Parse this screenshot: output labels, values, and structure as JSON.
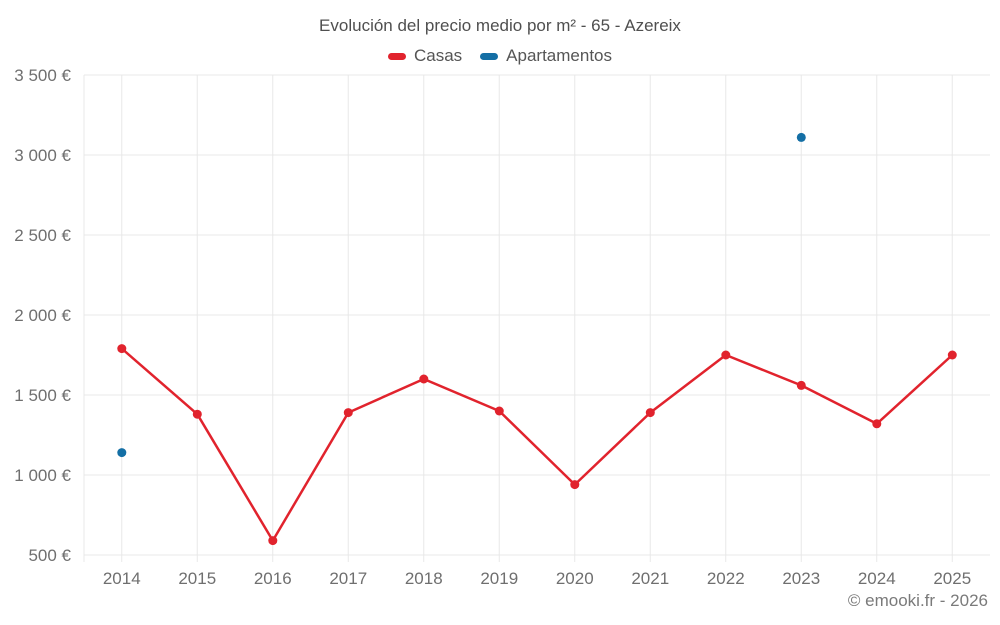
{
  "chart_data": {
    "type": "line",
    "title": "Evolución del precio medio por m² - 65 - Azereix",
    "credit": "© emooki.fr - 2026",
    "categories": [
      "2014",
      "2015",
      "2016",
      "2017",
      "2018",
      "2019",
      "2020",
      "2021",
      "2022",
      "2023",
      "2024",
      "2025"
    ],
    "series": [
      {
        "name": "Casas",
        "color": "#e1232d",
        "values": [
          1790,
          1380,
          590,
          1390,
          1600,
          1400,
          940,
          1390,
          1750,
          1560,
          1320,
          1750
        ]
      },
      {
        "name": "Apartamentos",
        "color": "#146fa5",
        "values": [
          1140,
          null,
          null,
          null,
          null,
          null,
          null,
          null,
          null,
          3110,
          null,
          null
        ]
      }
    ],
    "ylim": [
      500,
      3500
    ],
    "y_ticks": [
      {
        "value": 500,
        "label": "500 €"
      },
      {
        "value": 1000,
        "label": "1 000 €"
      },
      {
        "value": 1500,
        "label": "1 500 €"
      },
      {
        "value": 2000,
        "label": "2 000 €"
      },
      {
        "value": 2500,
        "label": "2 500 €"
      },
      {
        "value": 3000,
        "label": "3 000 €"
      },
      {
        "value": 3500,
        "label": "3 500 €"
      }
    ],
    "xlabel": "",
    "ylabel": "",
    "grid": true,
    "legend_position": "top",
    "grid_color": "#e8e8e8",
    "axis_label_color": "#6f6f6f",
    "background_color": "#ffffff"
  }
}
